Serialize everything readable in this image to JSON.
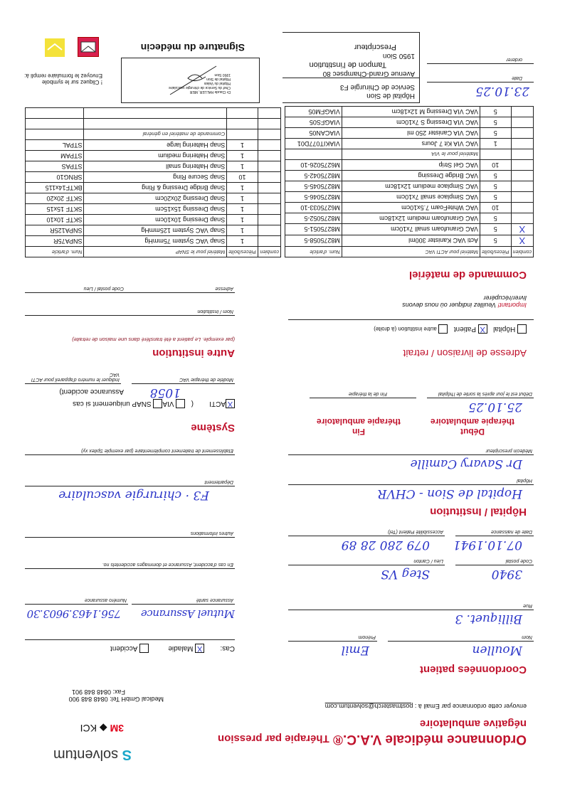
{
  "header": {
    "title_line1": "Ordonnance médicale V.A.C.®",
    "title_line1b": "Thérapie par pression",
    "title_line2": "négative ambulatoire",
    "email_prefix": "envoyer cette ordonnance par Email à :",
    "email": "postmasterch@solventum.com",
    "company": "Medical GmbH",
    "tel": "Tel: 0848 848 900",
    "fax": "Fax: 0848 848 901",
    "logo": "solventum",
    "logo2_3m": "3M",
    "logo2_kci": "KCI"
  },
  "patient": {
    "heading": "Coordonnées patient",
    "nom_label": "Nom",
    "nom": "Moullen",
    "prenom_label": "Prénom",
    "prenom": "Emil",
    "cas_label": "Cas:",
    "maladie_label": "Maladie",
    "maladie_checked": "X",
    "accident_label": "Accident",
    "rue_label": "Rue",
    "rue": "Billiquet. 3",
    "assurance_label": "Assurance santé",
    "assurance": "Mutuel Assurance",
    "numero_label": "Numéro assurance",
    "numero": "756.1463.9603.30",
    "cp_label": "Code postal",
    "cp": "3940",
    "lieu_label": "Lieu / Canton",
    "lieu": "Steg VS",
    "accident_no_label": "En cas d'accident; Assurance et dommages accidentels no.",
    "naissance_label": "Date de naissance",
    "naissance": "07.10.1941",
    "tel_label": "Accessibilité Patient (Tel)",
    "tel": "079 280 28 89",
    "autres_label": "Autres informations"
  },
  "hospital": {
    "heading": "Hôpital / Institution",
    "hopital_label": "Hôpital",
    "hopital": "Hopital de Sion - CHVR",
    "dept_label": "Département",
    "dept": "F3 · chirurgie vasculaire",
    "medecin_label": "Médecin prescripteur",
    "medecin": "Dr Savary Camille",
    "etab_label": "Etablissement de traitement complémentaire (par exemple Spitex xy)"
  },
  "therapy": {
    "debut_h1": "Début",
    "debut_h2": "thérapie ambulatoire",
    "fin_h1": "Fin",
    "fin_h2": "thérapie ambulatoire",
    "debut": "25.10.25",
    "debut_label": "Début est le jour après la sortie de l'hôpital",
    "fin_label": "Fin de la thérapie"
  },
  "system": {
    "heading": "Système",
    "acti": "ACTI",
    "acti_checked": "X",
    "via": "VIA",
    "snap": "SNAP uniquement si cas",
    "snap2": "Assurance accident)",
    "paren": "(",
    "modele_label": "Modèle de thérapie VAC",
    "modele": "1058",
    "device_label": "Indiquer le numéro d'appareil pour ACTI VAC"
  },
  "delivery": {
    "heading": "Adresse de livraison / retrait",
    "hopital": "Hôpital",
    "patient": "Patient",
    "patient_checked": "X",
    "autre": "autre institution (à droite)",
    "important": "Important!",
    "important_text": "Veuillez indiquer où nous devons",
    "important_text2": "livrer/récupérer"
  },
  "autre": {
    "heading": "Autre institution",
    "note": "(par exemple. Le patient a été transféré dans une maison de retraite)",
    "nom_label": "Nom / Institution",
    "adresse_label": "Adresse",
    "cp_label": "Code postal / Lieu"
  },
  "order": {
    "heading": "Commande de matériel",
    "acti_header": [
      "combien",
      "Pièces/boîte",
      "Matériel pour ACTI VAC",
      "Num. d'article"
    ],
    "acti_rows": [
      {
        "check": "X",
        "qty": "5",
        "name": "Acti VAC Kanister 300ml",
        "code": "M8275058-5"
      },
      {
        "check": "X",
        "qty": "5",
        "name": "VAC Granufoam small 7x10cm",
        "code": "M8275051-5"
      },
      {
        "check": "",
        "qty": "5",
        "name": "VAC Granufoam medium 12x18cm",
        "code": "M8275052-5"
      },
      {
        "check": "",
        "qty": "10",
        "name": "VAC WhiteFoam 7.5x10cm",
        "code": "M6275033-10"
      },
      {
        "check": "",
        "qty": "5",
        "name": "VAC Simplace small 7x10cm",
        "code": "M8275046-5"
      },
      {
        "check": "",
        "qty": "5",
        "name": "VAC Simplace medium 12x18cm",
        "code": "M8275045-5"
      },
      {
        "check": "",
        "qty": "5",
        "name": "VAC Bridge Dressing",
        "code": "M8275042-5"
      },
      {
        "check": "",
        "qty": "10",
        "name": "VAC Gel Strip",
        "code": "M6275026-10"
      },
      {
        "sub": "Matériel pour le VIA"
      },
      {
        "check": "",
        "qty": "1",
        "name": "VAC VIA Kit 7 Jours",
        "code": "VIAKIT077D01"
      },
      {
        "check": "",
        "qty": "5",
        "name": "VAC VIA Canister 250 ml",
        "code": "VIACAN05"
      },
      {
        "check": "",
        "qty": "5",
        "name": "VAC VIA Dressing S 7x10cm",
        "code": "VIAGFS05"
      },
      {
        "check": "",
        "qty": "5",
        "name": "VAC VIA Dressing M 12x18cm",
        "code": "VIAGFM05"
      }
    ],
    "snap_header": [
      "combien",
      "Pièces/boîte",
      "Matériel pour le SNAP",
      "Num. d'article"
    ],
    "snap_rows": [
      {
        "check": "",
        "qty": "1",
        "name": "Snap VAC System 75mmHg",
        "code": "SNPA75R"
      },
      {
        "check": "",
        "qty": "1",
        "name": "Snap VAC System 125mmHg",
        "code": "SNPA125R"
      },
      {
        "check": "",
        "qty": "1",
        "name": "Snap Dressing 10x10cm",
        "code": "SKTF 10x10"
      },
      {
        "check": "",
        "qty": "1",
        "name": "Snap Dressing 15x15cm",
        "code": "SKTF 15x15"
      },
      {
        "check": "",
        "qty": "1",
        "name": "Snap Dressing 20x20cm",
        "code": "SKTF 20x20"
      },
      {
        "check": "",
        "qty": "1",
        "name": "Snap Bridge Dressing & Ring",
        "code": "BKTF14x115"
      },
      {
        "check": "",
        "qty": "10",
        "name": "Snap Secure Ring",
        "code": "SRNG10"
      },
      {
        "check": "",
        "qty": "1",
        "name": "Snap Haltering small",
        "code": "STPAS"
      },
      {
        "check": "",
        "qty": "1",
        "name": "Snap Haltering medium",
        "code": "STPAM"
      },
      {
        "check": "",
        "qty": "1",
        "name": "Snap Haltering large",
        "code": "STPAL"
      },
      {
        "sub": "Commande de matériel en général"
      },
      {
        "check": "",
        "qty": "",
        "name": "",
        "code": ""
      },
      {
        "check": "",
        "qty": "",
        "name": "",
        "code": ""
      }
    ]
  },
  "footer": {
    "date": "23.10.25",
    "date_label": "Date",
    "orderer_label": "orderer",
    "stamp": [
      "Hôpital de Sion",
      "Service de Chirurgie F3",
      "Avenue Grand-Champsec 80",
      "1950 Sion"
    ],
    "stamp_label": "Tampon de l'institution",
    "prescripteur": "Prescripteur",
    "signature_heading": "Signature du médecin",
    "signature_stamp": [
      "Dr Claude HALLER, MER",
      "Chef du Service de chirurgie vasculaire",
      "Hôpital du Valais",
      "Hôpital de Sion",
      "1950 Sion"
    ],
    "click_text1": "! Cliquez sur le symbole",
    "click_text2": "Envoyez le formulaire rempli à:"
  },
  "colors": {
    "heading": "#c0122c",
    "handwriting": "#2b35c8"
  }
}
